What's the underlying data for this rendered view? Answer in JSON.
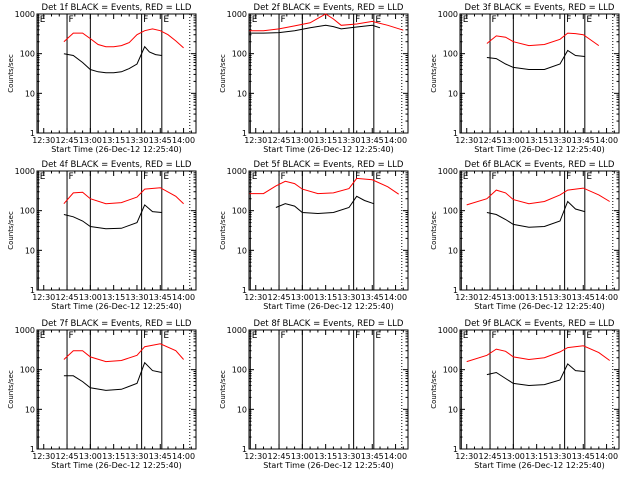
{
  "colors": {
    "events": "#000000",
    "lld": "#ff0000",
    "axes": "#000000",
    "background": "#ffffff"
  },
  "chart_data": {
    "type": "line",
    "common": {
      "ylabel": "Counts/sec",
      "xlabel": "Start Time (26-Dec-12 12:25:40)",
      "x_ticks": [
        "12:30",
        "12:45",
        "13:00",
        "13:15",
        "13:30",
        "13:45",
        "14:00"
      ],
      "y_ticks": [
        "1",
        "10",
        "100",
        "1000"
      ],
      "ylim": [
        1,
        1000
      ],
      "yscale": "log",
      "xlim": [
        "12:25:40",
        "14:08:00"
      ],
      "markers": [
        {
          "label": "E",
          "time": "12:26:30",
          "style": "solid"
        },
        {
          "label": "F",
          "time": "12:45:00",
          "style": "solid"
        },
        {
          "label": "",
          "time": "13:00:00",
          "style": "solid"
        },
        {
          "label": "F",
          "time": "13:33:00",
          "style": "solid"
        },
        {
          "label": "E",
          "time": "13:46:00",
          "style": "solid"
        },
        {
          "label": "",
          "time": "14:04:00",
          "style": "dotted"
        }
      ]
    },
    "panels": [
      {
        "title": "Det 1f BLACK = Events, RED = LLD",
        "has_data": true,
        "series": [
          {
            "name": "Events",
            "x": [
              "12:43",
              "12:49",
              "12:55",
              "13:00",
              "13:05",
              "13:10",
              "13:15",
              "13:20",
              "13:25",
              "13:30",
              "13:35",
              "13:38",
              "13:42",
              "13:46"
            ],
            "y": [
              100,
              90,
              60,
              40,
              35,
              33,
              33,
              35,
              42,
              55,
              150,
              110,
              95,
              90
            ]
          },
          {
            "name": "LLD",
            "x": [
              "12:43",
              "12:49",
              "12:55",
              "13:00",
              "13:05",
              "13:10",
              "13:15",
              "13:20",
              "13:25",
              "13:30",
              "13:35",
              "13:40",
              "13:45",
              "13:50",
              "13:55",
              "14:00"
            ],
            "y": [
              200,
              330,
              330,
              240,
              170,
              150,
              150,
              160,
              190,
              300,
              380,
              420,
              380,
              300,
              210,
              140
            ]
          }
        ]
      },
      {
        "title": "Det 2f BLACK = Events, RED = LLD",
        "has_data": true,
        "series": [
          {
            "name": "Events",
            "x": [
              "12:26",
              "12:35",
              "12:45",
              "12:55",
              "13:05",
              "13:15",
              "13:20",
              "13:25",
              "13:35",
              "13:45",
              "13:50"
            ],
            "y": [
              330,
              330,
              340,
              380,
              450,
              520,
              480,
              420,
              470,
              520,
              450
            ]
          },
          {
            "name": "LLD",
            "x": [
              "12:26",
              "12:35",
              "12:45",
              "12:55",
              "13:05",
              "13:15",
              "13:20",
              "13:25",
              "13:35",
              "13:45",
              "13:55",
              "14:05"
            ],
            "y": [
              380,
              380,
              420,
              500,
              600,
              1000,
              750,
              520,
              560,
              650,
              520,
              390
            ]
          }
        ]
      },
      {
        "title": "Det 3f BLACK = Events, RED = LLD",
        "has_data": true,
        "series": [
          {
            "name": "Events",
            "x": [
              "12:43",
              "12:49",
              "12:55",
              "13:00",
              "13:10",
              "13:20",
              "13:30",
              "13:35",
              "13:40",
              "13:46"
            ],
            "y": [
              80,
              75,
              55,
              45,
              40,
              40,
              55,
              120,
              90,
              85
            ]
          },
          {
            "name": "LLD",
            "x": [
              "12:43",
              "12:49",
              "12:55",
              "13:00",
              "13:10",
              "13:20",
              "13:30",
              "13:35",
              "13:40",
              "13:45",
              "13:50",
              "13:55"
            ],
            "y": [
              180,
              280,
              260,
              200,
              160,
              170,
              230,
              330,
              320,
              300,
              220,
              160
            ]
          }
        ]
      },
      {
        "title": "Det 4f BLACK = Events, RED = LLD",
        "has_data": true,
        "series": [
          {
            "name": "Events",
            "x": [
              "12:43",
              "12:49",
              "12:55",
              "13:00",
              "13:10",
              "13:20",
              "13:30",
              "13:35",
              "13:40",
              "13:46"
            ],
            "y": [
              80,
              70,
              55,
              40,
              35,
              36,
              50,
              140,
              95,
              90
            ]
          },
          {
            "name": "LLD",
            "x": [
              "12:43",
              "12:49",
              "12:55",
              "13:00",
              "13:10",
              "13:20",
              "13:30",
              "13:35",
              "13:45",
              "13:55",
              "14:00"
            ],
            "y": [
              150,
              280,
              290,
              200,
              150,
              160,
              220,
              350,
              380,
              230,
              150
            ]
          }
        ]
      },
      {
        "title": "Det 5f BLACK = Events, RED = LLD",
        "has_data": true,
        "series": [
          {
            "name": "Events",
            "x": [
              "12:43",
              "12:49",
              "12:55",
              "13:00",
              "13:10",
              "13:20",
              "13:30",
              "13:35",
              "13:40",
              "13:46"
            ],
            "y": [
              120,
              150,
              130,
              90,
              85,
              90,
              120,
              230,
              180,
              150
            ]
          },
          {
            "name": "LLD",
            "x": [
              "12:26",
              "12:35",
              "12:43",
              "12:49",
              "12:55",
              "13:00",
              "13:10",
              "13:20",
              "13:30",
              "13:35",
              "13:45",
              "13:55",
              "14:02"
            ],
            "y": [
              270,
              270,
              420,
              550,
              480,
              350,
              270,
              280,
              360,
              650,
              600,
              400,
              260
            ]
          }
        ]
      },
      {
        "title": "Det 6f BLACK = Events, RED = LLD",
        "has_data": true,
        "series": [
          {
            "name": "Events",
            "x": [
              "12:43",
              "12:49",
              "12:55",
              "13:00",
              "13:10",
              "13:20",
              "13:30",
              "13:35",
              "13:40",
              "13:46"
            ],
            "y": [
              90,
              80,
              60,
              45,
              38,
              40,
              55,
              170,
              110,
              95
            ]
          },
          {
            "name": "LLD",
            "x": [
              "12:30",
              "12:43",
              "12:49",
              "12:55",
              "13:00",
              "13:10",
              "13:20",
              "13:30",
              "13:35",
              "13:45",
              "13:55",
              "14:02"
            ],
            "y": [
              140,
              200,
              330,
              280,
              190,
              150,
              170,
              250,
              330,
              370,
              250,
              170
            ]
          }
        ]
      },
      {
        "title": "Det 7f BLACK = Events, RED = LLD",
        "has_data": true,
        "series": [
          {
            "name": "Events",
            "x": [
              "12:43",
              "12:49",
              "12:55",
              "13:00",
              "13:10",
              "13:20",
              "13:30",
              "13:35",
              "13:40",
              "13:46"
            ],
            "y": [
              70,
              70,
              50,
              35,
              30,
              32,
              45,
              150,
              95,
              85
            ]
          },
          {
            "name": "LLD",
            "x": [
              "12:43",
              "12:49",
              "12:55",
              "13:00",
              "13:10",
              "13:20",
              "13:30",
              "13:35",
              "13:45",
              "13:55",
              "14:00"
            ],
            "y": [
              180,
              300,
              300,
              210,
              160,
              170,
              230,
              380,
              450,
              300,
              180
            ]
          }
        ]
      },
      {
        "title": "Det 8f BLACK = Events, RED = LLD",
        "has_data": false,
        "series": []
      },
      {
        "title": "Det 9f BLACK = Events, RED = LLD",
        "has_data": true,
        "series": [
          {
            "name": "Events",
            "x": [
              "12:43",
              "12:49",
              "12:55",
              "13:00",
              "13:10",
              "13:20",
              "13:30",
              "13:35",
              "13:40",
              "13:46"
            ],
            "y": [
              75,
              85,
              60,
              45,
              40,
              42,
              55,
              140,
              95,
              90
            ]
          },
          {
            "name": "LLD",
            "x": [
              "12:30",
              "12:43",
              "12:49",
              "12:55",
              "13:00",
              "13:10",
              "13:20",
              "13:30",
              "13:35",
              "13:45",
              "13:55",
              "14:02"
            ],
            "y": [
              160,
              230,
              330,
              290,
              210,
              180,
              200,
              280,
              360,
              400,
              270,
              170
            ]
          }
        ]
      }
    ]
  }
}
